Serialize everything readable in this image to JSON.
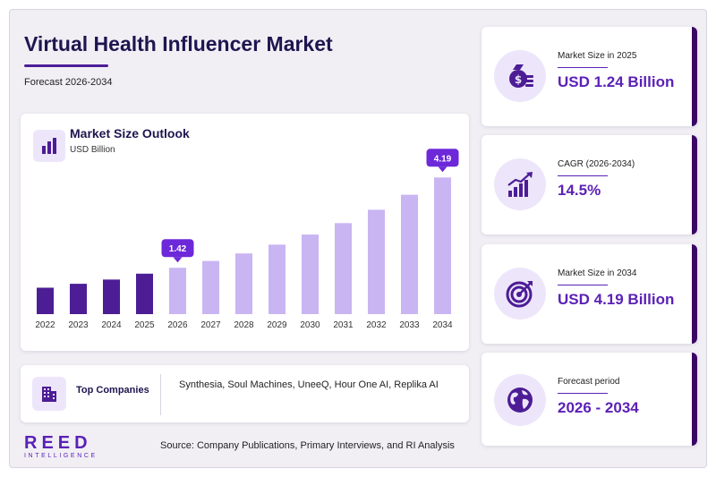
{
  "header": {
    "title": "Virtual Health Influencer Market",
    "subtitle": "Forecast 2026-2034"
  },
  "chart_panel": {
    "title": "Market Size Outlook",
    "unit": "USD Billion",
    "icon": "bar-chart-icon"
  },
  "chart_data": {
    "type": "bar",
    "categories": [
      "2022",
      "2023",
      "2024",
      "2025",
      "2026",
      "2027",
      "2028",
      "2029",
      "2030",
      "2031",
      "2032",
      "2033",
      "2034"
    ],
    "values": [
      0.81,
      0.93,
      1.06,
      1.24,
      1.42,
      1.63,
      1.86,
      2.13,
      2.44,
      2.79,
      3.2,
      3.66,
      4.19
    ],
    "historical_count": 4,
    "callouts": [
      {
        "category": "2026",
        "label": "1.42"
      },
      {
        "category": "2034",
        "label": "4.19"
      }
    ],
    "ylim": [
      0,
      4.5
    ],
    "grid": false,
    "colors": {
      "historical": "#4c1d95",
      "forecast": "#c9b5f2",
      "callout": "#6d28d9"
    }
  },
  "companies": {
    "label": "Top Companies",
    "list": "Synthesia, Soul Machines, UneeQ, Hour One AI, Replika AI",
    "icon": "building-icon"
  },
  "stats": [
    {
      "label": "Market Size in 2025",
      "value": "USD 1.24 Billion",
      "icon": "money-bag-icon"
    },
    {
      "label": "CAGR (2026-2034)",
      "value": "14.5%",
      "icon": "growth-chart-icon"
    },
    {
      "label": "Market Size in 2034",
      "value": "USD 4.19 Billion",
      "icon": "target-icon"
    },
    {
      "label": "Forecast period",
      "value": "2026 - 2034",
      "icon": "globe-icon"
    }
  ],
  "footer": {
    "logo_main": "REED",
    "logo_sub": "INTELLIGENCE",
    "source": "Source: Company Publications, Primary Interviews, and RI Analysis"
  },
  "colors": {
    "accent": "#5b21b6",
    "dark": "#1e1650",
    "background": "#f1eff4"
  }
}
